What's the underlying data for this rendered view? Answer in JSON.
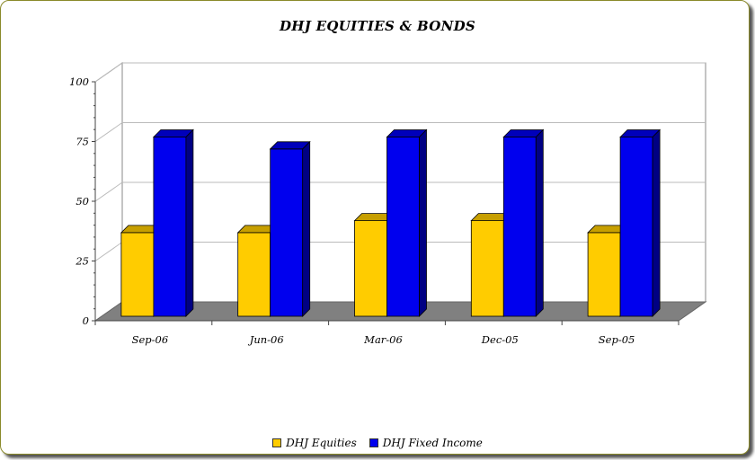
{
  "chart_data": {
    "type": "bar",
    "title": "DHJ EQUITIES & BONDS",
    "categories": [
      "Sep-06",
      "Jun-06",
      "Mar-06",
      "Dec-05",
      "Sep-05"
    ],
    "series": [
      {
        "name": "DHJ Equities",
        "values": [
          35,
          35,
          40,
          40,
          35
        ],
        "color": "#FFCC00"
      },
      {
        "name": "DHJ Fixed Income",
        "values": [
          75,
          70,
          75,
          75,
          75
        ],
        "color": "#0000EE"
      }
    ],
    "ylim": [
      0,
      100
    ],
    "yticks": [
      "0",
      "25",
      "50",
      "75",
      "100"
    ],
    "grid": true,
    "style": "3d",
    "legend_position": "bottom"
  }
}
